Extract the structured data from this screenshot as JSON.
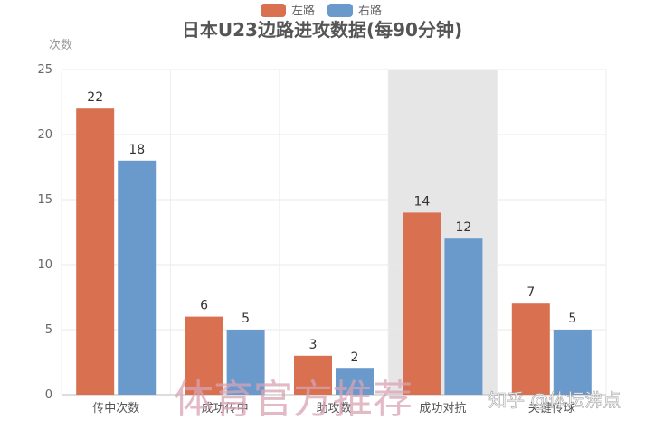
{
  "chart_data": {
    "type": "bar",
    "title": "日本U23边路进攻数据(每90分钟)",
    "ylabel": "次数",
    "xlabel": "",
    "categories": [
      "传中次数",
      "成功传中",
      "助攻数",
      "成功对抗",
      "关键传球"
    ],
    "series": [
      {
        "name": "左路",
        "values": [
          22,
          6,
          3,
          14,
          7
        ],
        "color": "#d9704f"
      },
      {
        "name": "右路",
        "values": [
          18,
          5,
          2,
          12,
          5
        ],
        "color": "#6a9acb"
      }
    ],
    "ylim": [
      0,
      25
    ],
    "yticks": [
      0,
      5,
      10,
      15,
      20,
      25
    ],
    "highlight_category_index": 3,
    "highlight_color": "#e6e6e6",
    "grid": true,
    "legend_position": "top-center"
  },
  "watermark": {
    "text": "体育官方推荐",
    "source": "知乎 @体坛沸点"
  }
}
